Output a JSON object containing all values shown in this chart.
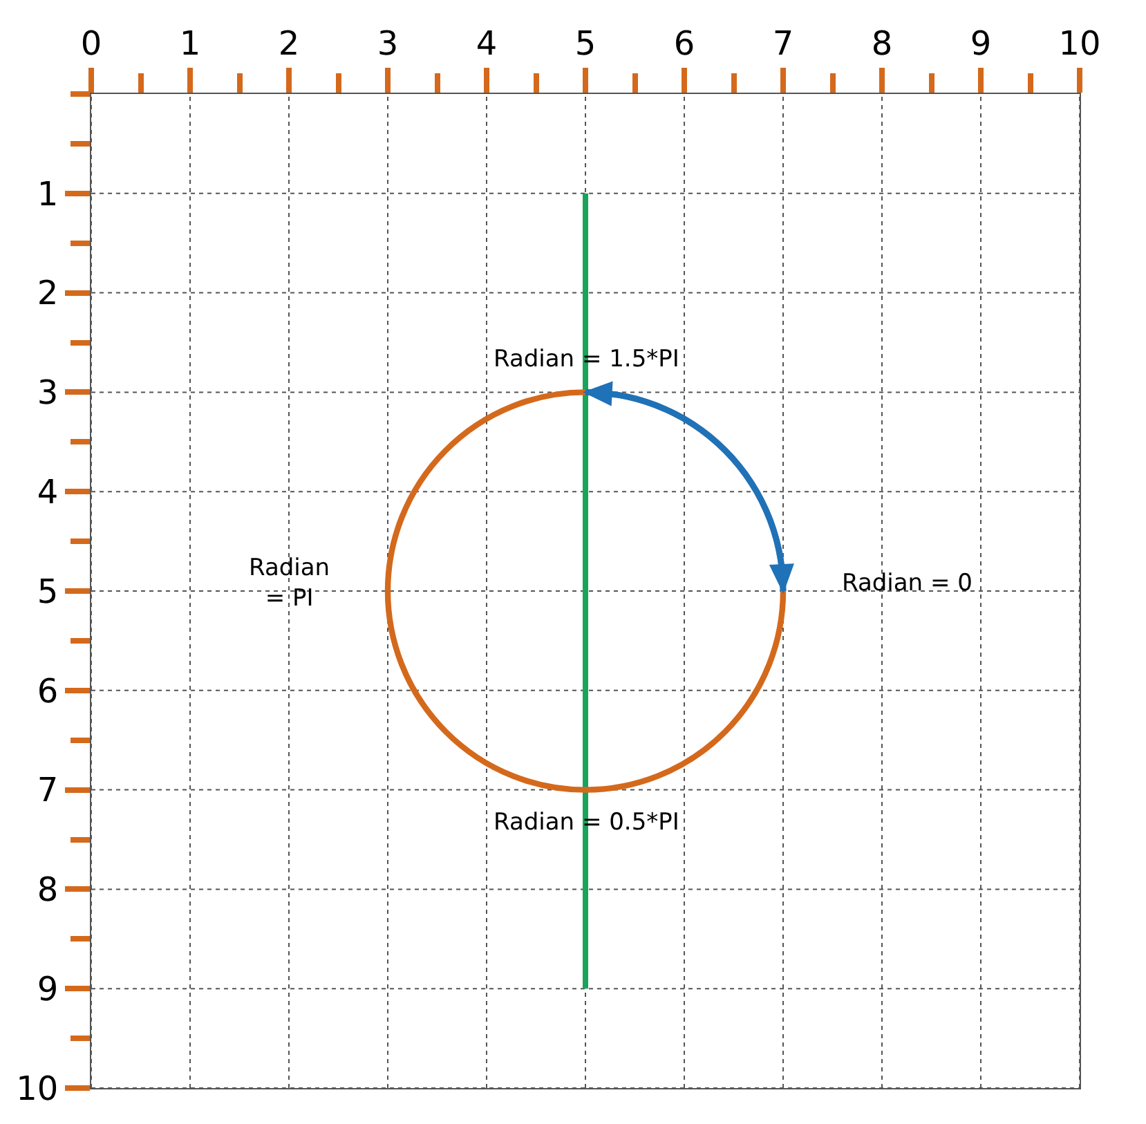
{
  "chart_data": {
    "type": "line",
    "xlim": [
      0,
      10
    ],
    "ylim": [
      10,
      0
    ],
    "xticks": [
      0,
      {
        "value": 0.5,
        "label": null
      },
      1,
      {
        "value": 1.5,
        "label": null
      },
      2,
      {
        "value": 2.5,
        "label": null
      },
      3,
      {
        "value": 3.5,
        "label": null
      },
      4,
      {
        "value": 4.5,
        "label": null
      },
      5,
      {
        "value": 5.5,
        "label": null
      },
      6,
      {
        "value": 6.5,
        "label": null
      },
      7,
      {
        "value": 7.5,
        "label": null
      },
      8,
      {
        "value": 8.5,
        "label": null
      },
      9,
      {
        "value": 9.5,
        "label": null
      },
      10
    ],
    "yticks": [
      {
        "value": 0,
        "label": null
      },
      {
        "value": 0.5,
        "label": null
      },
      1,
      {
        "value": 1.5,
        "label": null
      },
      2,
      {
        "value": 2.5,
        "label": null
      },
      3,
      {
        "value": 3.5,
        "label": null
      },
      4,
      {
        "value": 4.5,
        "label": null
      },
      5,
      {
        "value": 5.5,
        "label": null
      },
      6,
      {
        "value": 6.5,
        "label": null
      },
      7,
      {
        "value": 7.5,
        "label": null
      },
      8,
      {
        "value": 8.5,
        "label": null
      },
      9,
      {
        "value": 9.5,
        "label": null
      },
      10
    ],
    "grid": true,
    "marker": "none",
    "line_style": "solid",
    "series": [
      {
        "color": "#1aa35a",
        "x": [
          5,
          5
        ],
        "values": [
          1,
          9
        ]
      }
    ],
    "annotations": [
      {
        "text": "Radian = 1.5*PI",
        "x": 5,
        "y": 3
      },
      "Radian\n= PI",
      "Radian = 0",
      {
        "text": "Radian = 0.5*PI",
        "x": 5,
        "y": 7
      }
    ]
  }
}
